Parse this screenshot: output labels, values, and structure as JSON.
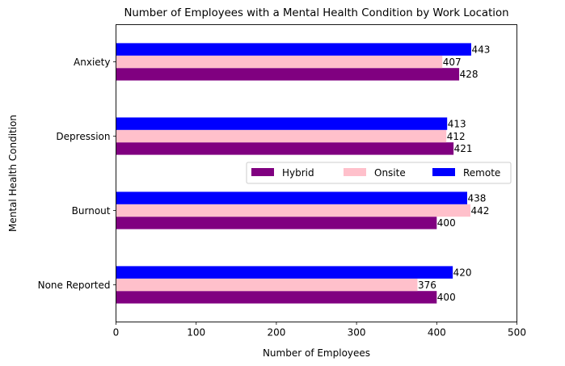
{
  "chart_data": {
    "type": "bar",
    "orientation": "horizontal",
    "title": "Number of Employees with a Mental Health Condition by Work Location",
    "xlabel": "Number of Employees",
    "ylabel": "Mental Health Condition",
    "categories": [
      "Anxiety",
      "Depression",
      "Burnout",
      "None Reported"
    ],
    "series": [
      {
        "name": "Hybrid",
        "color": "#800080",
        "values": [
          428,
          421,
          400,
          400
        ]
      },
      {
        "name": "Onsite",
        "color": "#ffc0cb",
        "values": [
          407,
          412,
          442,
          376
        ]
      },
      {
        "name": "Remote",
        "color": "#0000ff",
        "values": [
          443,
          413,
          438,
          420
        ]
      }
    ],
    "xlim": [
      0,
      500
    ],
    "xticks": [
      0,
      100,
      200,
      300,
      400,
      500
    ],
    "grid": false,
    "legend": {
      "position": "center-right",
      "columns": 3
    }
  }
}
